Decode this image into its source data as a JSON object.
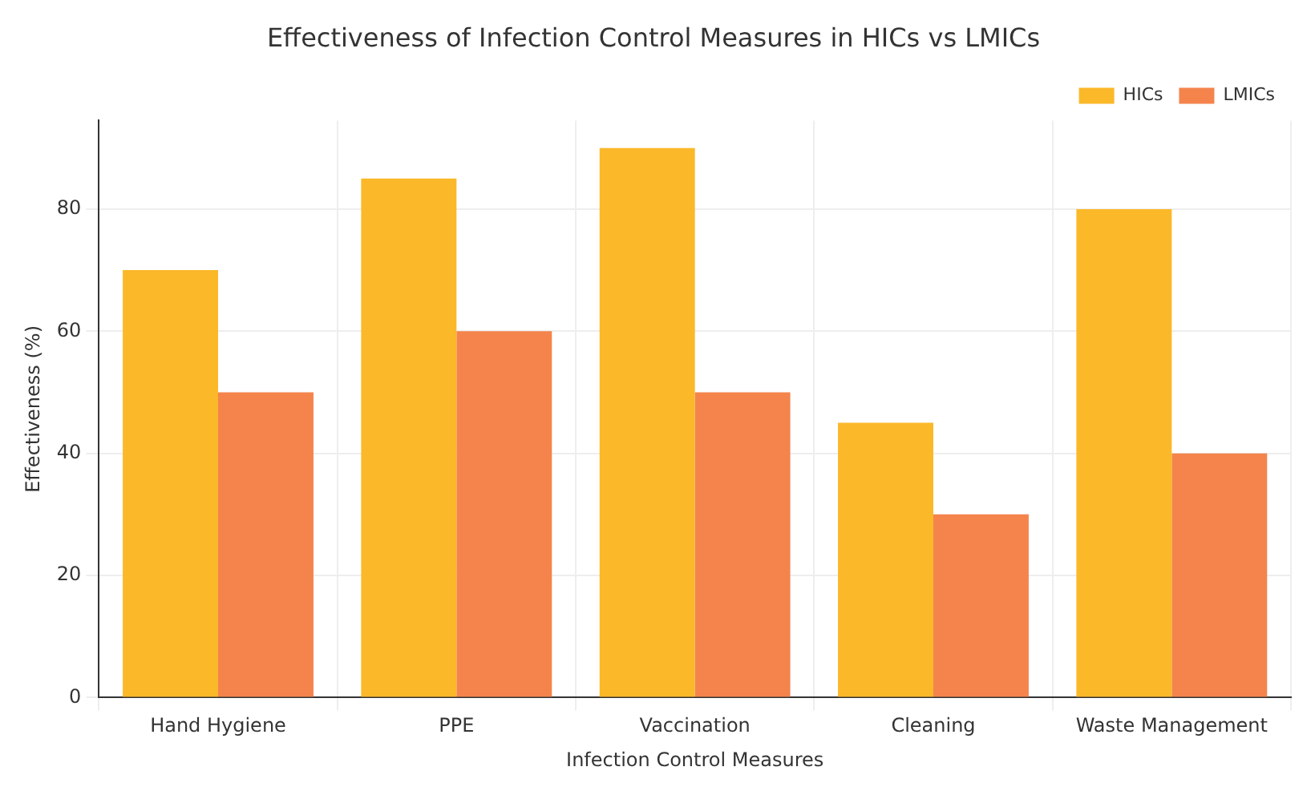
{
  "chart_data": {
    "type": "bar",
    "title": "Effectiveness of Infection Control Measures in HICs vs LMICs",
    "xlabel": "Infection Control Measures",
    "ylabel": "Effectiveness (%)",
    "categories": [
      "Hand Hygiene",
      "PPE",
      "Vaccination",
      "Cleaning",
      "Waste Management"
    ],
    "series": [
      {
        "name": "HICs",
        "color": "#fbb829",
        "values": [
          70,
          85,
          90,
          45,
          80
        ]
      },
      {
        "name": "LMICs",
        "color": "#f4844c",
        "values": [
          50,
          60,
          50,
          30,
          40
        ]
      }
    ],
    "ylim": [
      0,
      94.5
    ],
    "yticks": [
      0,
      20,
      40,
      60,
      80
    ],
    "grid": true,
    "legend": "top right"
  }
}
